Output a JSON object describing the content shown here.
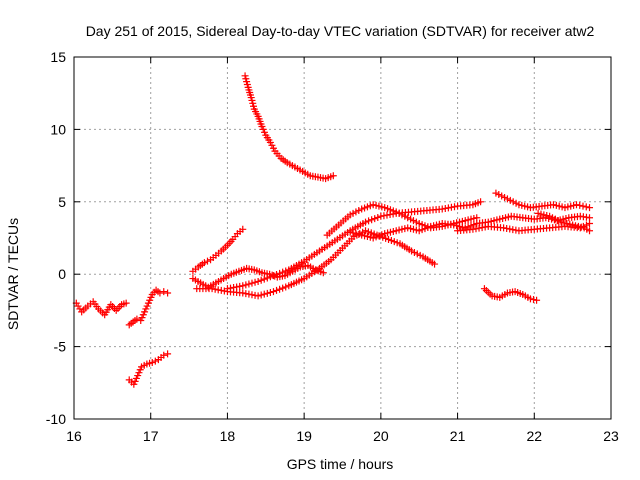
{
  "chart_data": {
    "type": "scatter",
    "title": "Day 251 of 2015, Sidereal Day-to-day VTEC variation (SDTVAR) for receiver atw2",
    "xlabel": "GPS time / hours",
    "ylabel": "SDTVAR / TECUs",
    "xlim": [
      16,
      23
    ],
    "ylim": [
      -10,
      15
    ],
    "xticks": [
      16,
      17,
      18,
      19,
      20,
      21,
      22,
      23
    ],
    "yticks": [
      -10,
      -5,
      0,
      5,
      10,
      15
    ],
    "grid": true,
    "marker": "+",
    "color": "#ff0000",
    "series": [
      {
        "name": "arc-1",
        "x": [
          16.03,
          16.1,
          16.18,
          16.25,
          16.32,
          16.4,
          16.48,
          16.55,
          16.62,
          16.68
        ],
        "y": [
          -2.0,
          -2.6,
          -2.2,
          -1.9,
          -2.4,
          -2.8,
          -2.1,
          -2.5,
          -2.1,
          -2.0
        ]
      },
      {
        "name": "arc-2",
        "x": [
          16.72,
          16.77,
          16.82,
          16.87,
          16.92,
          16.97,
          17.02,
          17.07,
          17.12,
          17.17,
          17.22
        ],
        "y": [
          -3.5,
          -3.3,
          -3.1,
          -3.2,
          -2.6,
          -2.0,
          -1.4,
          -1.1,
          -1.3,
          -1.2,
          -1.3
        ]
      },
      {
        "name": "arc-3",
        "x": [
          16.72,
          16.78,
          16.83,
          16.88,
          16.95,
          17.02,
          17.1,
          17.17,
          17.22
        ],
        "y": [
          -7.3,
          -7.6,
          -7.0,
          -6.4,
          -6.2,
          -6.1,
          -5.9,
          -5.6,
          -5.5
        ]
      },
      {
        "name": "arc-4",
        "x": [
          17.55,
          17.62,
          17.7,
          17.78,
          17.85,
          17.92,
          18.0,
          18.07,
          18.13,
          18.2
        ],
        "y": [
          0.2,
          0.5,
          0.8,
          1.0,
          1.3,
          1.6,
          2.0,
          2.4,
          2.8,
          3.1
        ]
      },
      {
        "name": "arc-5",
        "x": [
          18.23,
          18.27,
          18.31,
          18.35,
          18.4,
          18.45,
          18.5,
          18.56,
          18.62,
          18.7,
          18.78,
          18.88,
          18.98,
          19.08,
          19.18,
          19.28,
          19.38
        ],
        "y": [
          13.7,
          12.9,
          12.2,
          11.4,
          10.9,
          10.2,
          9.6,
          9.1,
          8.5,
          8.0,
          7.7,
          7.4,
          7.1,
          6.8,
          6.7,
          6.6,
          6.8
        ]
      },
      {
        "name": "arc-6",
        "x": [
          17.55,
          17.65,
          17.75,
          17.85,
          17.95,
          18.05,
          18.15,
          18.25,
          18.35,
          18.45,
          18.55,
          18.65,
          18.75,
          18.85,
          18.95,
          19.05,
          19.15,
          19.25
        ],
        "y": [
          -0.3,
          -0.6,
          -0.9,
          -0.6,
          -0.3,
          0.0,
          0.2,
          0.4,
          0.3,
          0.1,
          0.0,
          -0.2,
          -0.1,
          0.2,
          0.5,
          0.6,
          0.3,
          0.1
        ]
      },
      {
        "name": "arc-7",
        "x": [
          17.6,
          17.8,
          18.0,
          18.2,
          18.4,
          18.6,
          18.8,
          19.0,
          19.2,
          19.35,
          19.5,
          19.65,
          19.8,
          19.95,
          20.1,
          20.25,
          20.4,
          20.55,
          20.7
        ],
        "y": [
          -1.0,
          -1.0,
          -1.2,
          -1.3,
          -1.5,
          -1.2,
          -0.8,
          -0.3,
          0.4,
          1.0,
          1.8,
          2.6,
          3.0,
          2.7,
          2.4,
          2.1,
          1.6,
          1.2,
          0.7
        ]
      },
      {
        "name": "arc-8",
        "x": [
          18.0,
          18.2,
          18.4,
          18.6,
          18.8,
          19.0,
          19.2,
          19.4,
          19.6,
          19.8,
          20.0,
          20.2,
          20.4,
          20.6,
          20.8,
          21.0,
          21.2,
          21.3
        ],
        "y": [
          -1.0,
          -0.8,
          -0.5,
          -0.1,
          0.3,
          0.9,
          1.6,
          2.3,
          3.0,
          3.6,
          4.0,
          4.2,
          4.3,
          4.4,
          4.5,
          4.7,
          4.8,
          5.0
        ]
      },
      {
        "name": "arc-9",
        "x": [
          19.3,
          19.45,
          19.6,
          19.75,
          19.9,
          20.05,
          20.2,
          20.35,
          20.5,
          20.65,
          20.8,
          20.95,
          21.1,
          21.25
        ],
        "y": [
          2.7,
          3.4,
          4.1,
          4.5,
          4.8,
          4.6,
          4.3,
          3.9,
          3.5,
          3.2,
          3.3,
          3.5,
          3.7,
          3.9
        ]
      },
      {
        "name": "arc-10",
        "x": [
          19.6,
          19.75,
          19.9,
          20.05,
          20.2,
          20.35,
          20.5,
          20.65,
          20.8,
          20.95,
          21.1,
          21.25,
          21.4,
          21.55,
          21.7,
          21.85,
          22.0,
          22.15,
          22.3,
          22.45,
          22.6,
          22.72
        ],
        "y": [
          2.9,
          2.7,
          2.5,
          2.8,
          3.0,
          3.2,
          3.0,
          3.3,
          3.5,
          3.4,
          3.2,
          3.5,
          3.6,
          3.8,
          4.0,
          3.9,
          3.8,
          3.9,
          3.7,
          3.9,
          4.0,
          3.9
        ]
      },
      {
        "name": "arc-11",
        "x": [
          21.0,
          21.2,
          21.4,
          21.6,
          21.8,
          22.0,
          22.2,
          22.4,
          22.6,
          22.72
        ],
        "y": [
          3.0,
          3.1,
          3.3,
          3.2,
          3.0,
          3.1,
          3.2,
          3.3,
          3.2,
          3.5
        ]
      },
      {
        "name": "arc-12",
        "x": [
          21.5,
          21.65,
          21.8,
          21.95,
          22.1,
          22.25,
          22.4,
          22.55,
          22.72
        ],
        "y": [
          5.6,
          5.2,
          4.8,
          4.6,
          4.7,
          4.8,
          4.6,
          4.8,
          4.6
        ]
      },
      {
        "name": "arc-13",
        "x": [
          22.05,
          22.2,
          22.35,
          22.5,
          22.65,
          22.72
        ],
        "y": [
          4.2,
          4.0,
          3.6,
          3.4,
          3.2,
          3.0
        ]
      },
      {
        "name": "arc-14",
        "x": [
          21.35,
          21.45,
          21.55,
          21.65,
          21.75,
          21.85,
          21.95,
          22.03
        ],
        "y": [
          -1.0,
          -1.5,
          -1.6,
          -1.3,
          -1.2,
          -1.4,
          -1.7,
          -1.8
        ]
      }
    ]
  }
}
